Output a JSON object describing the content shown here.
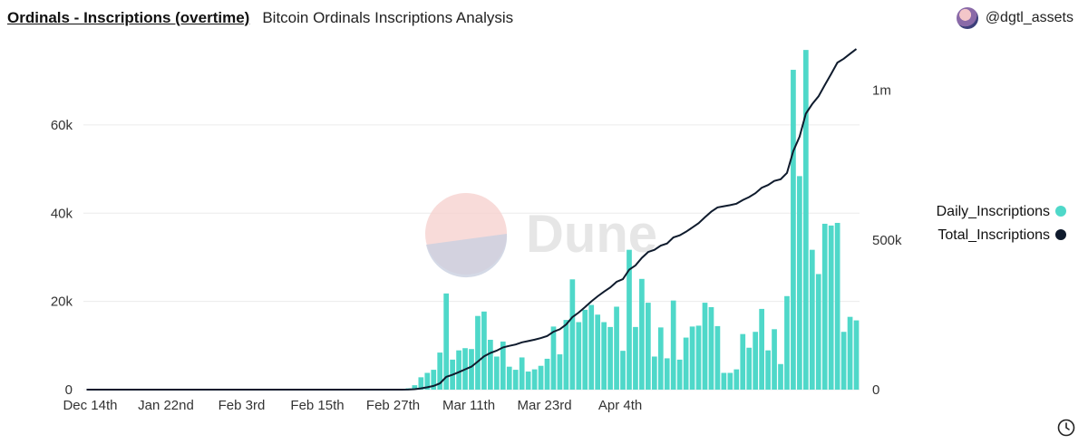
{
  "header": {
    "title": "Ordinals - Inscriptions (overtime)",
    "subtitle": "Bitcoin Ordinals Inscriptions Analysis",
    "author": "@dgtl_assets"
  },
  "watermark": "Dune",
  "colors": {
    "bar": "#4fd8c9",
    "line": "#0f1b2d",
    "grid": "#ececec",
    "text": "#333333"
  },
  "chart_data": {
    "type": "bar+line",
    "x_tick_labels": [
      "Dec 14th",
      "Jan 22nd",
      "Feb 3rd",
      "Feb 15th",
      "Feb 27th",
      "Mar 11th",
      "Mar 23rd",
      "Apr 4th"
    ],
    "y_left_ticks": [
      "0",
      "20k",
      "40k",
      "60k"
    ],
    "y_right_ticks": [
      "0",
      "500k",
      "1m"
    ],
    "ylim_left": [
      0,
      76000
    ],
    "ylim_right": [
      0,
      1120000
    ],
    "legend_position": "right",
    "series": [
      {
        "name": "Daily_Inscriptions",
        "type": "bar",
        "axis": "left",
        "color": "#4fd8c9",
        "values": [
          0,
          0,
          0,
          0,
          0,
          0,
          0,
          0,
          0,
          0,
          0,
          0,
          0,
          0,
          0,
          0,
          0,
          0,
          0,
          0,
          0,
          0,
          0,
          0,
          0,
          0,
          0,
          0,
          0,
          0,
          0,
          0,
          0,
          0,
          0,
          0,
          0,
          0,
          0,
          0,
          0,
          0,
          0,
          0,
          0,
          0,
          0,
          0,
          0,
          0,
          100,
          300,
          1000,
          2800,
          3800,
          4500,
          8400,
          21800,
          6800,
          8900,
          9400,
          9200,
          16700,
          17700,
          11300,
          7500,
          10900,
          5200,
          4500,
          7300,
          4100,
          4600,
          5400,
          7000,
          14300,
          8000,
          15800,
          25000,
          15300,
          18100,
          19200,
          17000,
          15300,
          14200,
          18800,
          8800,
          31700,
          14200,
          25100,
          19700,
          7500,
          14100,
          7100,
          20200,
          6800,
          11800,
          14300,
          14500,
          19700,
          18700,
          14400,
          3800,
          3800,
          4600,
          12600,
          9500,
          13100,
          18300,
          8900,
          13700,
          5800,
          21200,
          72500,
          48400,
          77000,
          31700,
          26200,
          37600,
          37200,
          37800,
          13100,
          16500,
          15700
        ]
      },
      {
        "name": "Total_Inscriptions",
        "type": "line",
        "axis": "right",
        "color": "#0f1b2d",
        "values": [
          0,
          0,
          0,
          0,
          0,
          0,
          0,
          0,
          0,
          0,
          0,
          0,
          0,
          0,
          0,
          0,
          0,
          0,
          0,
          0,
          0,
          0,
          0,
          0,
          0,
          0,
          0,
          0,
          0,
          0,
          0,
          0,
          0,
          0,
          0,
          0,
          0,
          0,
          0,
          0,
          0,
          0,
          0,
          0,
          0,
          0,
          0,
          0,
          0,
          0,
          100,
          400,
          1400,
          4200,
          8000,
          12500,
          20900,
          42700,
          49500,
          58400,
          67800,
          77000,
          93700,
          111400,
          122700,
          130200,
          141100,
          146300,
          150800,
          158100,
          162200,
          166800,
          172200,
          179200,
          193500,
          201500,
          217300,
          242300,
          257600,
          275700,
          294900,
          311900,
          327200,
          341400,
          360200,
          369000,
          400700,
          414900,
          440000,
          459700,
          467200,
          481300,
          488400,
          508600,
          515400,
          527200,
          541500,
          556000,
          575700,
          594400,
          608800,
          612600,
          616400,
          621000,
          633600,
          643100,
          656200,
          674500,
          683400,
          697100,
          702900,
          724100,
          796600,
          845000,
          922000,
          953700,
          979900,
          1017500,
          1054700,
          1092500,
          1105600,
          1122100,
          1137800
        ]
      }
    ]
  }
}
